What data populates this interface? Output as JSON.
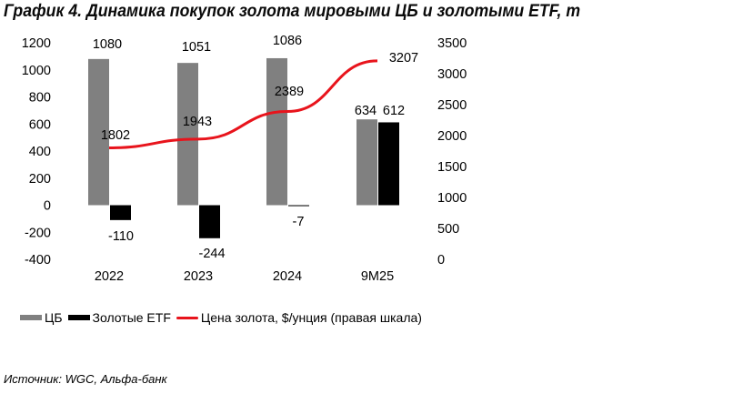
{
  "title": "График 4. Динамика покупок золота мировыми ЦБ и золотыми ETF, т",
  "source": "Источник: WGC, Альфа-банк",
  "chart_data": {
    "type": "bar+line",
    "categories": [
      "2022",
      "2023",
      "2024",
      "9M25"
    ],
    "series": [
      {
        "name": "ЦБ",
        "type": "bar",
        "axis": "left",
        "color": "#808080",
        "values": [
          1080,
          1051,
          1086,
          634
        ]
      },
      {
        "name": "Золотые ETF",
        "type": "bar",
        "axis": "left",
        "color": "#000000",
        "values": [
          -110,
          -244,
          -7,
          612
        ]
      },
      {
        "name": "Цена золота, $/унция (правая шкала)",
        "type": "line",
        "axis": "right",
        "color": "#e8141c",
        "values": [
          1802,
          1943,
          2389,
          3207
        ]
      }
    ],
    "left_axis": {
      "ylim": [
        -400,
        1200
      ],
      "ticks": [
        "1200",
        "1000",
        "800",
        "600",
        "400",
        "200",
        "0",
        "-200",
        "-400"
      ]
    },
    "right_axis": {
      "ylim": [
        0,
        3500
      ],
      "ticks": [
        "3500",
        "3000",
        "2500",
        "2000",
        "1500",
        "1000",
        "500",
        "0"
      ]
    },
    "grid": false,
    "legend": "bottom"
  }
}
